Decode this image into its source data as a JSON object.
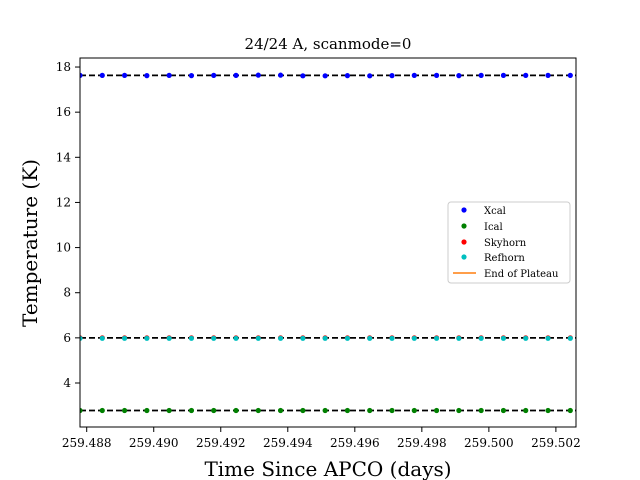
{
  "chart_data": {
    "type": "scatter",
    "title": "24/24 A, scanmode=0",
    "xlabel": "Time Since APCO (days)",
    "ylabel": "Temperature (K)",
    "xlim": [
      259.4878,
      259.5026
    ],
    "ylim": [
      2.05,
      18.4
    ],
    "xticks": [
      259.488,
      259.49,
      259.492,
      259.494,
      259.496,
      259.498,
      259.5,
      259.502
    ],
    "xtick_labels": [
      "259.488",
      "259.490",
      "259.492",
      "259.494",
      "259.496",
      "259.498",
      "259.500",
      "259.502"
    ],
    "yticks": [
      4,
      6,
      8,
      10,
      12,
      14,
      16,
      18
    ],
    "ytick_labels": [
      "4",
      "6",
      "8",
      "10",
      "12",
      "14",
      "16",
      "18"
    ],
    "grid": false,
    "legend_position": "center-right",
    "x_start": 259.4878,
    "x_step": 0.000665,
    "n_points": 23,
    "series": [
      {
        "name": "Xcal",
        "color": "#0000ff",
        "values": [
          17.63,
          17.63,
          17.63,
          17.62,
          17.63,
          17.62,
          17.63,
          17.63,
          17.64,
          17.64,
          17.61,
          17.61,
          17.62,
          17.61,
          17.62,
          17.63,
          17.63,
          17.62,
          17.63,
          17.63,
          17.63,
          17.63,
          17.63
        ]
      },
      {
        "name": "Ical",
        "color": "#008000",
        "values": [
          2.78,
          2.78,
          2.78,
          2.78,
          2.78,
          2.78,
          2.78,
          2.78,
          2.78,
          2.78,
          2.78,
          2.78,
          2.78,
          2.78,
          2.78,
          2.78,
          2.78,
          2.78,
          2.78,
          2.78,
          2.78,
          2.78,
          2.78
        ]
      },
      {
        "name": "Skyhorn",
        "color": "#ff0000",
        "values": [
          6.0,
          6.0,
          6.0,
          6.0,
          6.0,
          6.0,
          6.0,
          6.0,
          6.0,
          6.0,
          6.0,
          6.0,
          6.0,
          6.0,
          6.0,
          6.0,
          6.0,
          6.0,
          6.0,
          6.0,
          6.0,
          6.0,
          6.0
        ]
      },
      {
        "name": "Refhorn",
        "color": "#00bfbf",
        "values": [
          5.98,
          5.98,
          5.98,
          5.98,
          5.98,
          5.98,
          5.98,
          5.98,
          5.98,
          5.98,
          5.98,
          5.98,
          5.98,
          5.98,
          5.98,
          5.98,
          5.98,
          5.98,
          5.98,
          5.98,
          5.98,
          5.98,
          5.98
        ]
      }
    ],
    "reference_lines": [
      17.63,
      6.0,
      2.78
    ],
    "reference_line_color": "#000000",
    "extra_legend": {
      "name": "End of Plateau",
      "color": "#ff7f0e"
    }
  }
}
